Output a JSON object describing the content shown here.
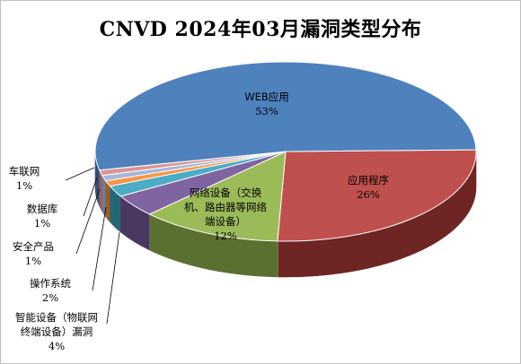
{
  "chart_data": {
    "type": "pie",
    "title": "CNVD 2024年03月漏洞类型分布",
    "slices": [
      {
        "label": "WEB应用",
        "label_lines": [
          "WEB应用"
        ],
        "percent_label": "53%",
        "value": 53,
        "color": "#4f81bd",
        "side": "#2f4f78"
      },
      {
        "label": "应用程序",
        "label_lines": [
          "应用程序"
        ],
        "percent_label": "26%",
        "value": 26,
        "color": "#c0504d",
        "side": "#6e2523"
      },
      {
        "label": "网络设备（交换机、路由器等网络端设备）",
        "label_lines": [
          "网络设备（交换",
          "机、路由器等网络",
          "端设备）"
        ],
        "percent_label": "12%",
        "value": 12,
        "color": "#9bbb59",
        "side": "#5a7030"
      },
      {
        "label": "智能设备（物联网终端设备）漏洞",
        "label_lines": [
          "智能设备（物联网",
          "终端设备）漏洞"
        ],
        "percent_label": "4%",
        "value": 4,
        "color": "#8064a2",
        "side": "#4a3863"
      },
      {
        "label": "操作系统",
        "label_lines": [
          "操作系统"
        ],
        "percent_label": "2%",
        "value": 2,
        "color": "#4bacc6",
        "side": "#246878"
      },
      {
        "label": "安全产品",
        "label_lines": [
          "安全产品"
        ],
        "percent_label": "1%",
        "value": 1,
        "color": "#f79646",
        "side": "#a35a1e"
      },
      {
        "label": "数据库",
        "label_lines": [
          "数据库"
        ],
        "percent_label": "1%",
        "value": 1,
        "color": "#a5b6d9",
        "side": "#6b7c9e"
      },
      {
        "label": "车联网",
        "label_lines": [
          "车联网"
        ],
        "percent_label": "1%",
        "value": 1,
        "color": "#d99694",
        "side": "#9a5d5b"
      }
    ],
    "legend": "none"
  }
}
